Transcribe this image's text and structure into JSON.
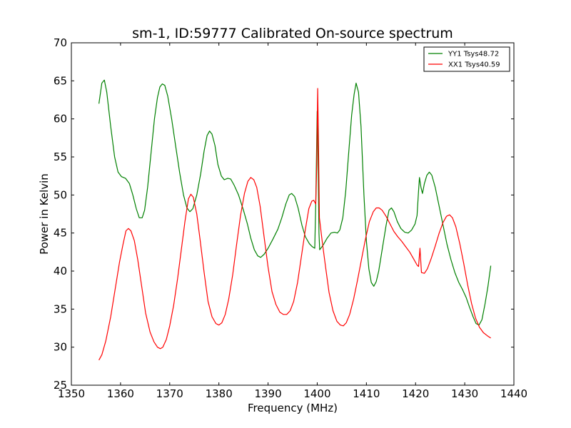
{
  "chart_data": {
    "type": "line",
    "title": "sm-1, ID:59777 Calibrated On-source spectrum",
    "xlabel": "Frequency (MHz)",
    "ylabel": "Power in Kelvin",
    "xlim": [
      1350,
      1440
    ],
    "ylim": [
      25,
      70
    ],
    "xticks": [
      1350,
      1360,
      1370,
      1380,
      1390,
      1400,
      1410,
      1420,
      1430,
      1440
    ],
    "yticks": [
      25,
      30,
      35,
      40,
      45,
      50,
      55,
      60,
      65,
      70
    ],
    "grid": false,
    "legend_position": "top-right",
    "series": [
      {
        "name": "YY1 Tsys48.72",
        "color": "#008000",
        "points": [
          [
            1355.6,
            62.0
          ],
          [
            1356.2,
            64.7
          ],
          [
            1356.7,
            65.1
          ],
          [
            1357.2,
            63.5
          ],
          [
            1358.0,
            59.0
          ],
          [
            1358.8,
            55.0
          ],
          [
            1359.5,
            53.0
          ],
          [
            1360.2,
            52.4
          ],
          [
            1361.0,
            52.2
          ],
          [
            1361.8,
            51.5
          ],
          [
            1362.5,
            50.0
          ],
          [
            1363.2,
            48.2
          ],
          [
            1363.8,
            47.0
          ],
          [
            1364.4,
            47.0
          ],
          [
            1364.9,
            48.0
          ],
          [
            1365.5,
            51.0
          ],
          [
            1366.2,
            55.5
          ],
          [
            1366.9,
            60.0
          ],
          [
            1367.5,
            62.8
          ],
          [
            1368.0,
            64.2
          ],
          [
            1368.5,
            64.6
          ],
          [
            1369.0,
            64.4
          ],
          [
            1369.6,
            63.0
          ],
          [
            1370.4,
            60.0
          ],
          [
            1371.2,
            56.5
          ],
          [
            1372.0,
            53.0
          ],
          [
            1372.8,
            50.0
          ],
          [
            1373.5,
            48.3
          ],
          [
            1374.1,
            47.8
          ],
          [
            1374.7,
            48.2
          ],
          [
            1375.5,
            50.0
          ],
          [
            1376.3,
            52.8
          ],
          [
            1377.0,
            55.8
          ],
          [
            1377.6,
            57.8
          ],
          [
            1378.1,
            58.4
          ],
          [
            1378.6,
            58.0
          ],
          [
            1379.2,
            56.5
          ],
          [
            1379.8,
            54.0
          ],
          [
            1380.5,
            52.5
          ],
          [
            1381.1,
            52.0
          ],
          [
            1381.8,
            52.2
          ],
          [
            1382.4,
            52.1
          ],
          [
            1383.1,
            51.3
          ],
          [
            1384.0,
            50.0
          ],
          [
            1385.0,
            48.0
          ],
          [
            1385.8,
            46.2
          ],
          [
            1386.5,
            44.3
          ],
          [
            1387.2,
            42.8
          ],
          [
            1387.9,
            42.0
          ],
          [
            1388.5,
            41.8
          ],
          [
            1389.2,
            42.2
          ],
          [
            1390.0,
            43.0
          ],
          [
            1391.0,
            44.2
          ],
          [
            1392.0,
            45.5
          ],
          [
            1392.8,
            47.0
          ],
          [
            1393.6,
            48.8
          ],
          [
            1394.3,
            50.0
          ],
          [
            1394.8,
            50.2
          ],
          [
            1395.4,
            49.8
          ],
          [
            1396.1,
            48.3
          ],
          [
            1396.9,
            46.0
          ],
          [
            1397.6,
            44.5
          ],
          [
            1398.4,
            43.6
          ],
          [
            1399.0,
            43.2
          ],
          [
            1399.5,
            43.0
          ],
          [
            1399.7,
            49.0
          ],
          [
            1400.0,
            61.0
          ],
          [
            1400.15,
            56.0
          ],
          [
            1400.35,
            45.0
          ],
          [
            1400.5,
            42.8
          ],
          [
            1401.2,
            43.4
          ],
          [
            1402.0,
            44.3
          ],
          [
            1402.8,
            45.0
          ],
          [
            1403.5,
            45.1
          ],
          [
            1404.1,
            45.0
          ],
          [
            1404.6,
            45.4
          ],
          [
            1405.2,
            47.0
          ],
          [
            1405.8,
            50.5
          ],
          [
            1406.4,
            55.5
          ],
          [
            1407.0,
            60.5
          ],
          [
            1407.5,
            63.2
          ],
          [
            1407.9,
            64.7
          ],
          [
            1408.4,
            63.5
          ],
          [
            1408.9,
            59.0
          ],
          [
            1409.5,
            50.0
          ],
          [
            1410.0,
            44.0
          ],
          [
            1410.5,
            40.3
          ],
          [
            1411.0,
            38.5
          ],
          [
            1411.5,
            38.0
          ],
          [
            1412.0,
            38.6
          ],
          [
            1412.5,
            40.0
          ],
          [
            1413.2,
            42.8
          ],
          [
            1414.0,
            46.0
          ],
          [
            1414.6,
            48.0
          ],
          [
            1415.1,
            48.3
          ],
          [
            1415.6,
            47.8
          ],
          [
            1416.3,
            46.5
          ],
          [
            1417.0,
            45.6
          ],
          [
            1417.8,
            45.1
          ],
          [
            1418.5,
            45.0
          ],
          [
            1419.2,
            45.4
          ],
          [
            1419.9,
            46.2
          ],
          [
            1420.3,
            47.3
          ],
          [
            1420.6,
            50.5
          ],
          [
            1420.8,
            52.3
          ],
          [
            1421.1,
            51.0
          ],
          [
            1421.4,
            50.2
          ],
          [
            1421.8,
            51.5
          ],
          [
            1422.3,
            52.6
          ],
          [
            1422.8,
            53.0
          ],
          [
            1423.3,
            52.6
          ],
          [
            1424.0,
            51.0
          ],
          [
            1424.8,
            48.5
          ],
          [
            1425.6,
            46.0
          ],
          [
            1426.4,
            43.5
          ],
          [
            1427.2,
            41.5
          ],
          [
            1428.0,
            39.8
          ],
          [
            1428.8,
            38.5
          ],
          [
            1429.6,
            37.5
          ],
          [
            1430.3,
            36.5
          ],
          [
            1431.0,
            35.2
          ],
          [
            1431.7,
            34.0
          ],
          [
            1432.3,
            33.1
          ],
          [
            1432.9,
            32.9
          ],
          [
            1433.5,
            33.6
          ],
          [
            1434.1,
            35.6
          ],
          [
            1434.7,
            37.9
          ],
          [
            1435.3,
            40.7
          ]
        ]
      },
      {
        "name": "XX1 Tsys40.59",
        "color": "#ff0000",
        "points": [
          [
            1355.6,
            28.3
          ],
          [
            1356.2,
            29.0
          ],
          [
            1357.0,
            30.8
          ],
          [
            1358.0,
            34.0
          ],
          [
            1359.0,
            38.0
          ],
          [
            1359.8,
            41.2
          ],
          [
            1360.5,
            43.5
          ],
          [
            1361.1,
            45.3
          ],
          [
            1361.6,
            45.6
          ],
          [
            1362.1,
            45.3
          ],
          [
            1362.8,
            44.0
          ],
          [
            1363.5,
            41.5
          ],
          [
            1364.3,
            38.0
          ],
          [
            1365.1,
            34.5
          ],
          [
            1366.0,
            32.0
          ],
          [
            1366.8,
            30.7
          ],
          [
            1367.5,
            30.0
          ],
          [
            1368.1,
            29.8
          ],
          [
            1368.6,
            30.0
          ],
          [
            1369.3,
            31.0
          ],
          [
            1370.0,
            32.8
          ],
          [
            1370.8,
            35.5
          ],
          [
            1371.6,
            39.0
          ],
          [
            1372.4,
            43.0
          ],
          [
            1373.1,
            46.5
          ],
          [
            1373.8,
            49.5
          ],
          [
            1374.3,
            50.1
          ],
          [
            1374.8,
            49.7
          ],
          [
            1375.5,
            47.5
          ],
          [
            1376.2,
            44.0
          ],
          [
            1377.0,
            39.8
          ],
          [
            1377.8,
            36.0
          ],
          [
            1378.6,
            34.0
          ],
          [
            1379.4,
            33.1
          ],
          [
            1380.0,
            32.9
          ],
          [
            1380.6,
            33.2
          ],
          [
            1381.3,
            34.3
          ],
          [
            1382.0,
            36.3
          ],
          [
            1382.8,
            39.5
          ],
          [
            1383.6,
            43.5
          ],
          [
            1384.4,
            47.3
          ],
          [
            1385.2,
            50.2
          ],
          [
            1385.9,
            51.8
          ],
          [
            1386.5,
            52.3
          ],
          [
            1387.1,
            52.0
          ],
          [
            1387.7,
            51.0
          ],
          [
            1388.4,
            48.5
          ],
          [
            1389.2,
            44.5
          ],
          [
            1390.0,
            40.5
          ],
          [
            1390.8,
            37.3
          ],
          [
            1391.6,
            35.6
          ],
          [
            1392.4,
            34.6
          ],
          [
            1393.1,
            34.3
          ],
          [
            1393.8,
            34.3
          ],
          [
            1394.5,
            34.8
          ],
          [
            1395.2,
            36.0
          ],
          [
            1396.0,
            38.5
          ],
          [
            1396.8,
            42.0
          ],
          [
            1397.6,
            45.5
          ],
          [
            1398.3,
            48.2
          ],
          [
            1398.9,
            49.2
          ],
          [
            1399.3,
            49.3
          ],
          [
            1399.7,
            48.8
          ],
          [
            1399.9,
            54.0
          ],
          [
            1400.1,
            64.0
          ],
          [
            1400.25,
            57.0
          ],
          [
            1400.45,
            47.0
          ],
          [
            1401.0,
            44.0
          ],
          [
            1401.7,
            40.5
          ],
          [
            1402.4,
            37.2
          ],
          [
            1403.2,
            34.8
          ],
          [
            1404.0,
            33.4
          ],
          [
            1404.7,
            32.9
          ],
          [
            1405.3,
            32.8
          ],
          [
            1405.9,
            33.2
          ],
          [
            1406.6,
            34.3
          ],
          [
            1407.4,
            36.3
          ],
          [
            1408.2,
            38.8
          ],
          [
            1409.0,
            41.5
          ],
          [
            1409.8,
            44.2
          ],
          [
            1410.6,
            46.5
          ],
          [
            1411.4,
            47.8
          ],
          [
            1412.0,
            48.3
          ],
          [
            1412.6,
            48.3
          ],
          [
            1413.2,
            48.0
          ],
          [
            1414.0,
            47.2
          ],
          [
            1414.8,
            46.2
          ],
          [
            1415.6,
            45.2
          ],
          [
            1416.4,
            44.5
          ],
          [
            1417.2,
            43.9
          ],
          [
            1418.0,
            43.2
          ],
          [
            1418.8,
            42.5
          ],
          [
            1419.6,
            41.6
          ],
          [
            1420.3,
            40.8
          ],
          [
            1420.6,
            40.6
          ],
          [
            1420.9,
            43.0
          ],
          [
            1421.2,
            39.8
          ],
          [
            1421.8,
            39.7
          ],
          [
            1422.4,
            40.3
          ],
          [
            1423.2,
            41.7
          ],
          [
            1424.0,
            43.3
          ],
          [
            1424.8,
            45.0
          ],
          [
            1425.6,
            46.4
          ],
          [
            1426.3,
            47.2
          ],
          [
            1426.9,
            47.4
          ],
          [
            1427.5,
            47.0
          ],
          [
            1428.2,
            45.8
          ],
          [
            1429.0,
            43.6
          ],
          [
            1429.8,
            41.0
          ],
          [
            1430.6,
            38.2
          ],
          [
            1431.4,
            35.7
          ],
          [
            1432.2,
            33.8
          ],
          [
            1433.0,
            32.6
          ],
          [
            1433.8,
            31.9
          ],
          [
            1434.6,
            31.5
          ],
          [
            1435.3,
            31.2
          ]
        ]
      }
    ]
  }
}
